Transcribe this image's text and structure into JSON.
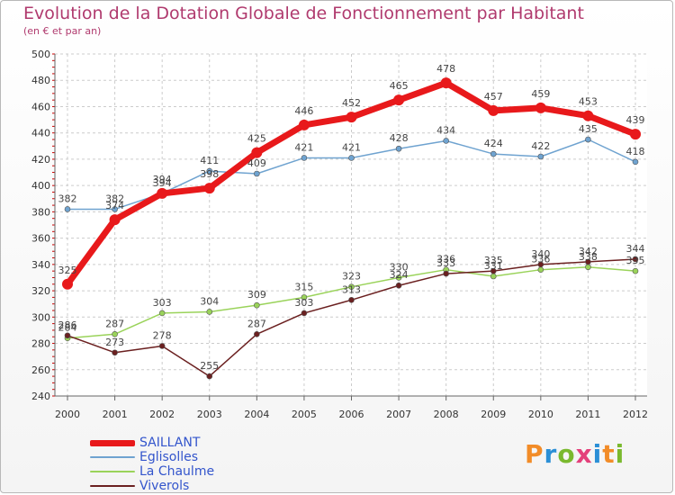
{
  "title": "Evolution de la Dotation Globale de Fonctionnement par Habitant",
  "subtitle": "(en € et par an)",
  "logo_text": "Proxiti",
  "colors": {
    "title": "#b03a6e",
    "legend_text": "#3355cc",
    "logo": [
      "#f28c28",
      "#2b8fd6",
      "#7ab92e",
      "#e4407a",
      "#2b8fd6",
      "#f28c28",
      "#7ab92e"
    ]
  },
  "chart_data": {
    "type": "line",
    "title": "Evolution de la Dotation Globale de Fonctionnement par Habitant",
    "subtitle": "(en € et par an)",
    "x": [
      "2000",
      "2001",
      "2002",
      "2003",
      "2004",
      "2005",
      "2006",
      "2007",
      "2008",
      "2009",
      "2010",
      "2011",
      "2012"
    ],
    "ylim": [
      240,
      500
    ],
    "yticks": [
      240,
      260,
      280,
      300,
      320,
      340,
      360,
      380,
      400,
      420,
      440,
      460,
      480,
      500
    ],
    "grid": true,
    "legend_position": "bottom-left",
    "series": [
      {
        "name": "SAILLANT",
        "color": "#e8191b",
        "width": 7,
        "values": [
          325,
          374,
          394,
          398,
          425,
          446,
          452,
          465,
          478,
          457,
          459,
          453,
          439
        ]
      },
      {
        "name": "Eglisolles",
        "color": "#6fa3d0",
        "width": 1.5,
        "values": [
          382,
          382,
          394,
          411,
          409,
          421,
          421,
          428,
          434,
          424,
          422,
          435,
          418
        ]
      },
      {
        "name": "La Chaulme",
        "color": "#9ad35a",
        "width": 1.5,
        "values": [
          284,
          287,
          303,
          304,
          309,
          315,
          323,
          330,
          336,
          331,
          336,
          338,
          335
        ]
      },
      {
        "name": "Viverols",
        "color": "#6b2020",
        "width": 1.5,
        "values": [
          286,
          273,
          278,
          255,
          287,
          303,
          313,
          324,
          333,
          335,
          340,
          342,
          344
        ]
      }
    ]
  }
}
